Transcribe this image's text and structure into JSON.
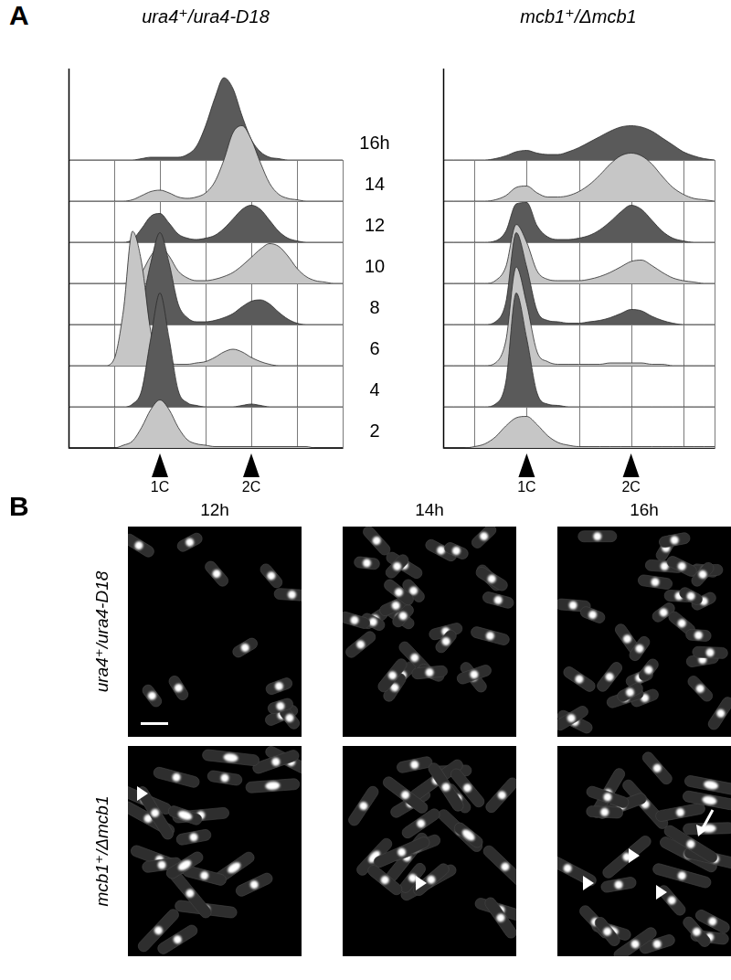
{
  "panel_labels": [
    "A",
    "B"
  ],
  "chart_data": [
    {
      "type": "line",
      "title": "ura4⁺/ura4-D18",
      "x": [
        0,
        0.1,
        0.2,
        0.3,
        0.4,
        0.5,
        0.6,
        0.7,
        0.8,
        0.9,
        1,
        1.1,
        1.2,
        1.3,
        1.4,
        1.5,
        1.6,
        1.7,
        1.8,
        1.9,
        2,
        2.1,
        2.2,
        2.3,
        2.4,
        2.5,
        2.6,
        2.7,
        2.8,
        2.9,
        3
      ],
      "xlim": [
        0,
        3
      ],
      "xticks": [
        0.5,
        1,
        1.5,
        2,
        2.5,
        3
      ],
      "ylim": [
        0,
        100
      ],
      "grid": true,
      "tick_labels": false,
      "annotations": [
        {
          "x": 1,
          "text": "1C"
        },
        {
          "x": 2,
          "text": "2C"
        }
      ],
      "series": [
        {
          "name": "16h",
          "color": "#5a5a5a",
          "values": [
            0,
            0,
            0,
            0,
            0,
            0,
            0,
            0,
            1,
            2,
            2,
            2,
            2,
            4,
            10,
            25,
            45,
            60,
            52,
            32,
            15,
            6,
            2,
            1,
            0,
            0,
            0,
            0,
            0,
            0,
            0
          ]
        },
        {
          "name": "14",
          "color": "#c6c6c6",
          "values": [
            0,
            0,
            0,
            0,
            0,
            0,
            0,
            1,
            4,
            7,
            8,
            6,
            3,
            2,
            3,
            6,
            14,
            30,
            50,
            55,
            45,
            28,
            13,
            5,
            2,
            1,
            0,
            0,
            0,
            0,
            0
          ]
        },
        {
          "name": "12",
          "color": "#5a5a5a",
          "values": [
            0,
            0,
            0,
            0,
            0,
            0,
            0,
            2,
            10,
            19,
            21,
            14,
            6,
            3,
            2,
            3,
            5,
            10,
            17,
            24,
            27,
            24,
            16,
            8,
            3,
            1,
            0,
            0,
            0,
            0,
            0
          ]
        },
        {
          "name": "10",
          "color": "#c6c6c6",
          "values": [
            0,
            0,
            0,
            0,
            0,
            0,
            0,
            2,
            8,
            20,
            27,
            20,
            9,
            4,
            2,
            2,
            3,
            5,
            8,
            13,
            19,
            25,
            29,
            27,
            20,
            11,
            5,
            2,
            1,
            0,
            0
          ]
        },
        {
          "name": "8",
          "color": "#5a5a5a",
          "values": [
            0,
            0,
            0,
            0,
            0,
            0,
            0,
            3,
            15,
            45,
            67,
            45,
            15,
            5,
            2,
            2,
            3,
            5,
            8,
            13,
            17,
            18,
            15,
            9,
            4,
            1,
            0,
            0,
            0,
            0,
            0
          ]
        },
        {
          "name": "6",
          "color": "#c6c6c6",
          "values": [
            0,
            0,
            0,
            0,
            0,
            5,
            40,
            98,
            75,
            25,
            6,
            2,
            1,
            1,
            2,
            3,
            6,
            10,
            12,
            10,
            6,
            3,
            1,
            0,
            0,
            0,
            0,
            0,
            0,
            0,
            0
          ]
        },
        {
          "name": "4",
          "color": "#5a5a5a",
          "values": [
            0,
            0,
            0,
            0,
            0,
            0,
            0,
            2,
            12,
            50,
            83,
            50,
            12,
            3,
            1,
            0,
            0,
            0,
            0,
            1,
            2,
            1,
            0,
            0,
            0,
            0,
            0,
            0,
            0,
            0,
            0
          ]
        },
        {
          "name": "2",
          "color": "#c6c6c6",
          "values": [
            0,
            0,
            0,
            0,
            0,
            0,
            2,
            5,
            15,
            28,
            35,
            28,
            15,
            6,
            3,
            2,
            1,
            1,
            1,
            1,
            1,
            1,
            1,
            1,
            1,
            1,
            1,
            0,
            0,
            0,
            0
          ]
        }
      ]
    },
    {
      "type": "line",
      "title": "mcb1⁺/Δmcb1",
      "x": [
        0.2,
        0.3,
        0.4,
        0.5,
        0.6,
        0.7,
        0.8,
        0.9,
        1,
        1.1,
        1.2,
        1.3,
        1.4,
        1.5,
        1.6,
        1.7,
        1.8,
        1.9,
        2,
        2.1,
        2.2,
        2.3,
        2.4,
        2.5,
        2.6,
        2.7,
        2.8
      ],
      "xlim": [
        0.2,
        2.8
      ],
      "xticks": [
        0.5,
        1,
        1.5,
        2,
        2.5
      ],
      "ylim": [
        0,
        100
      ],
      "grid": true,
      "tick_labels": false,
      "annotations": [
        {
          "x": 1,
          "text": "1C"
        },
        {
          "x": 2,
          "text": "2C"
        }
      ],
      "series": [
        {
          "color": "#5a5a5a",
          "values": [
            0,
            0,
            0,
            0,
            0,
            1,
            3,
            6,
            7,
            5,
            4,
            4,
            6,
            9,
            13,
            17,
            21,
            24,
            25,
            24,
            21,
            16,
            11,
            6,
            3,
            1,
            0
          ]
        },
        {
          "color": "#c6c6c6",
          "values": [
            0,
            0,
            0,
            0,
            0,
            1,
            4,
            10,
            11,
            6,
            3,
            3,
            4,
            7,
            12,
            19,
            27,
            33,
            35,
            33,
            27,
            18,
            10,
            5,
            2,
            1,
            0
          ]
        },
        {
          "color": "#5a5a5a",
          "values": [
            0,
            0,
            0,
            0,
            0,
            1,
            8,
            28,
            29,
            12,
            4,
            2,
            2,
            3,
            5,
            9,
            15,
            22,
            27,
            24,
            16,
            8,
            3,
            1,
            0,
            0,
            0
          ]
        },
        {
          "color": "#c6c6c6",
          "values": [
            0,
            0,
            0,
            0,
            0,
            2,
            12,
            43,
            30,
            9,
            3,
            2,
            2,
            2,
            3,
            5,
            8,
            12,
            16,
            17,
            13,
            8,
            4,
            2,
            1,
            0,
            0
          ]
        },
        {
          "color": "#5a5a5a",
          "values": [
            0,
            0,
            0,
            0,
            0,
            2,
            16,
            67,
            42,
            10,
            3,
            2,
            1,
            1,
            2,
            3,
            5,
            8,
            11,
            10,
            6,
            3,
            1,
            0,
            0,
            0,
            0
          ]
        },
        {
          "color": "#c6c6c6",
          "values": [
            0,
            0,
            0,
            0,
            0,
            2,
            18,
            72,
            45,
            10,
            3,
            1,
            1,
            1,
            1,
            1,
            2,
            2,
            2,
            2,
            1,
            1,
            0,
            0,
            0,
            0,
            0
          ]
        },
        {
          "color": "#5a5a5a",
          "values": [
            0,
            0,
            0,
            0,
            0,
            2,
            18,
            83,
            50,
            10,
            2,
            1,
            0,
            0,
            0,
            0,
            0,
            0,
            0,
            0,
            0,
            0,
            0,
            0,
            0,
            0,
            0
          ]
        },
        {
          "color": "#c6c6c6",
          "values": [
            0,
            0,
            0,
            1,
            3,
            8,
            16,
            22,
            23,
            17,
            9,
            4,
            2,
            1,
            1,
            1,
            1,
            1,
            1,
            1,
            1,
            1,
            1,
            1,
            1,
            1,
            1
          ]
        }
      ]
    }
  ],
  "micrographs": {
    "columns": [
      "12h",
      "14h",
      "16h"
    ],
    "rows": [
      "ura4⁺/ura4-D18",
      "mcb1⁺/Δmcb1"
    ]
  }
}
